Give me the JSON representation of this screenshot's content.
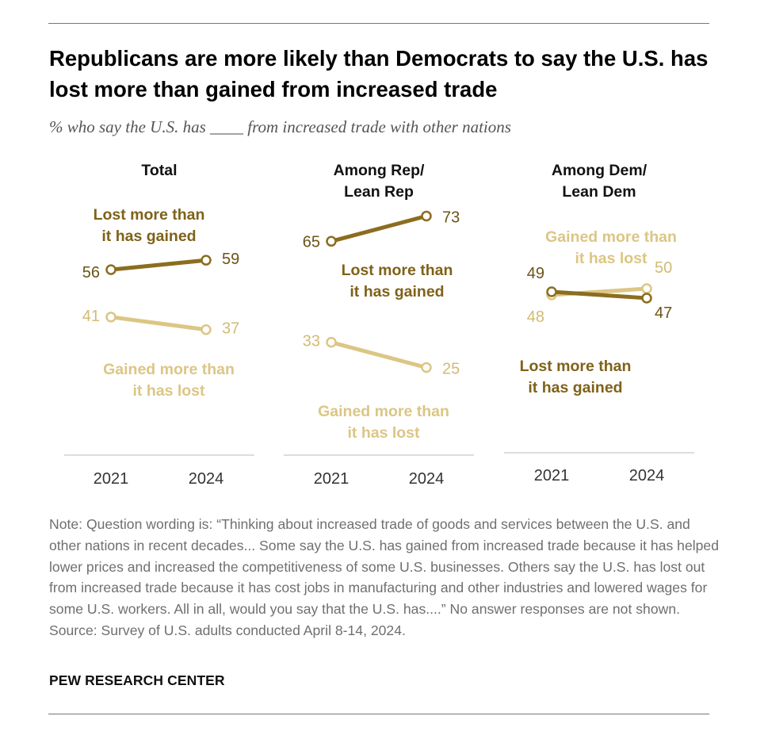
{
  "header": {
    "title": "Republicans are more likely than Democrats to say the U.S. has lost more than gained from increased trade",
    "subtitle": "% who say the U.S. has ____ from increased trade with other nations"
  },
  "colors": {
    "lost": "#8c6d1f",
    "gained": "#dcc685",
    "axis": "#d2d2d2"
  },
  "chart_data": [
    {
      "type": "line",
      "title": "Total",
      "x": [
        "2021",
        "2024"
      ],
      "series": [
        {
          "name": "Lost more than it has gained",
          "values": [
            56,
            59
          ]
        },
        {
          "name": "Gained more than it has lost",
          "values": [
            41,
            37
          ]
        }
      ]
    },
    {
      "type": "line",
      "title": "Among Rep/ Lean Rep",
      "x": [
        "2021",
        "2024"
      ],
      "series": [
        {
          "name": "Lost more than it has gained",
          "values": [
            65,
            73
          ]
        },
        {
          "name": "Gained more than it has lost",
          "values": [
            33,
            25
          ]
        }
      ]
    },
    {
      "type": "line",
      "title": "Among Dem/ Lean Dem",
      "x": [
        "2021",
        "2024"
      ],
      "series": [
        {
          "name": "Lost more than it has gained",
          "values": [
            49,
            47
          ]
        },
        {
          "name": "Gained more than it has lost",
          "values": [
            48,
            50
          ]
        }
      ]
    }
  ],
  "note": {
    "text": "Note: Question wording is: “Thinking about increased trade of goods and services between the U.S. and other nations in recent decades... Some say the U.S. has gained from increased trade because it has helped lower prices and increased the competitiveness of some U.S. businesses. Others say the U.S. has lost out from increased trade because it has cost jobs in manufacturing and other industries and lowered wages for some U.S. workers. All in all, would you say that the U.S. has....” No answer responses are not shown.",
    "source": "Source: Survey of U.S. adults conducted April 8-14, 2024."
  },
  "footer": {
    "brand": "PEW RESEARCH CENTER"
  }
}
